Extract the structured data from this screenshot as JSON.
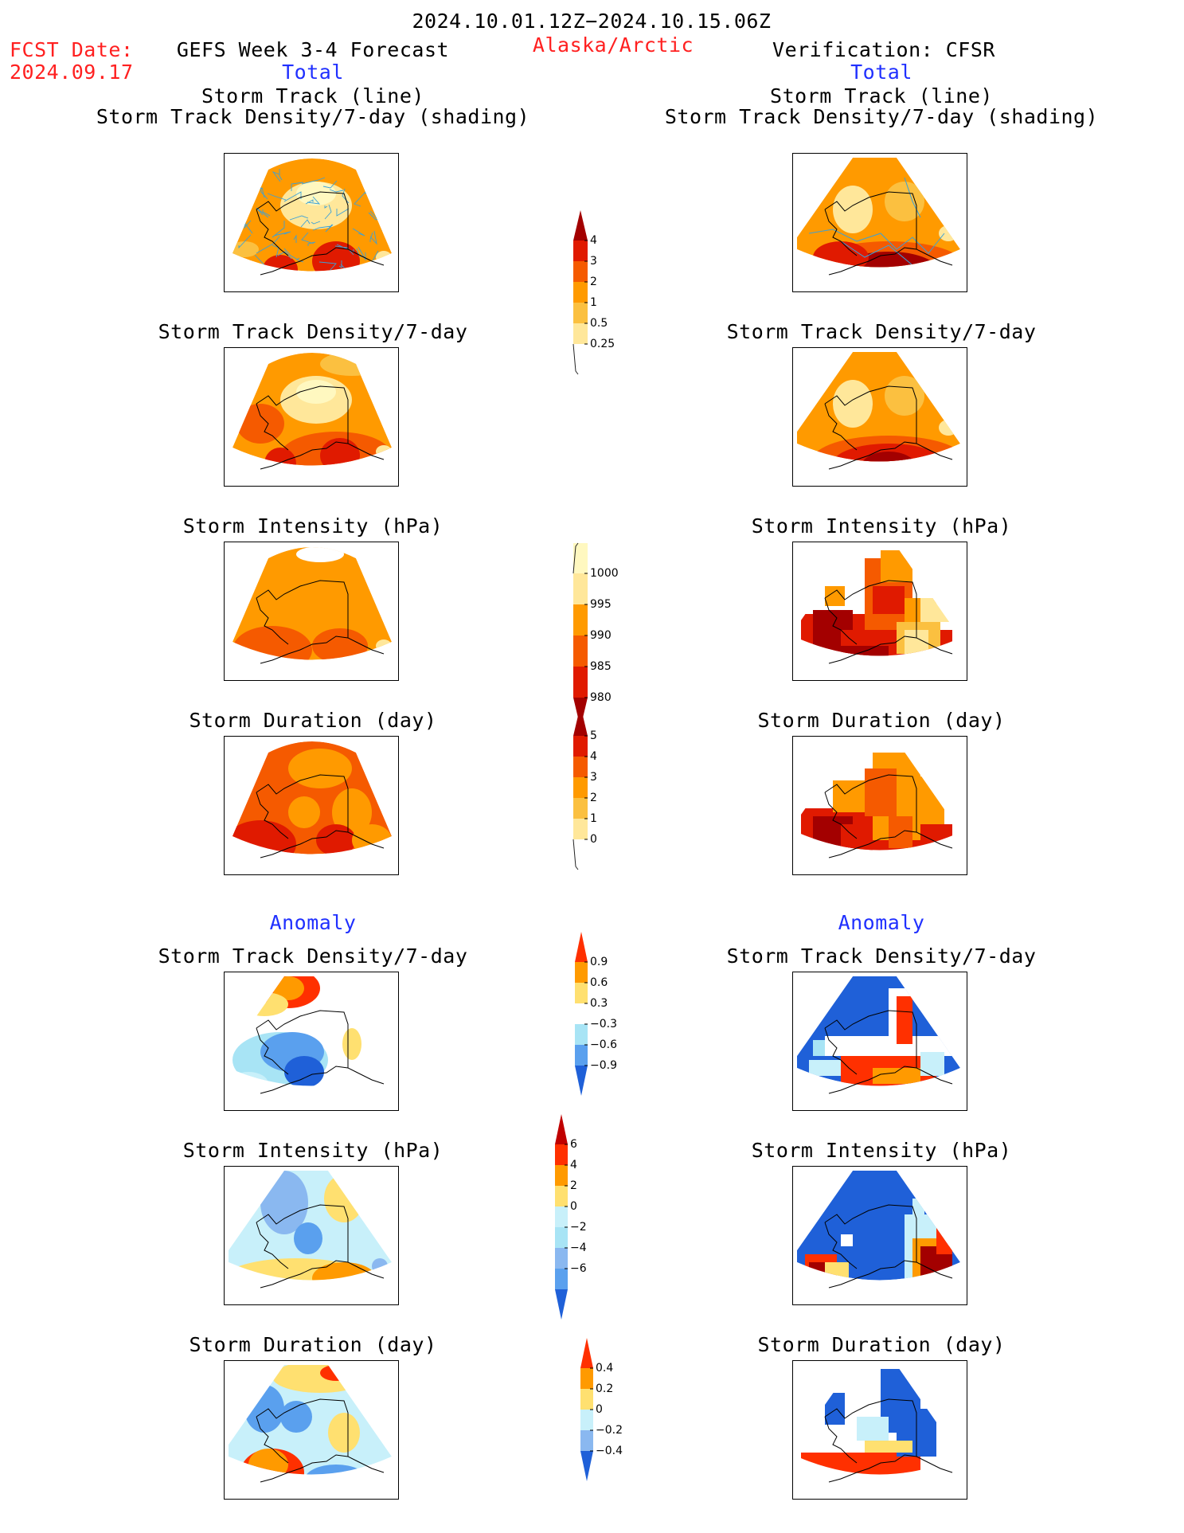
{
  "header": {
    "period": "2024.10.01.12Z−2024.10.15.06Z",
    "fcst_label": "FCST Date:",
    "fcst_date": "2024.09.17",
    "model": "GEFS Week 3-4 Forecast",
    "region": "Alaska/Arctic",
    "verification": "Verification: CFSR"
  },
  "columns": {
    "left_total": "Total",
    "right_total": "Total",
    "left_anomaly": "Anomaly",
    "right_anomaly": "Anomaly"
  },
  "panel_titles": {
    "track_line": "Storm Track (line)",
    "track_shading": "Storm Track Density/7-day (shading)",
    "density": "Storm Track Density/7-day",
    "intensity": "Storm Intensity (hPa)",
    "duration": "Storm Duration (day)"
  },
  "colorbars": {
    "density_total": {
      "labels": [
        "4",
        "3",
        "2",
        "1",
        "0.5",
        "0.25"
      ],
      "colors": [
        "#a30000",
        "#e01a00",
        "#f55a00",
        "#ff9a00",
        "#fbc040",
        "#ffe79a",
        "#fff8c0"
      ]
    },
    "intensity_total": {
      "labels": [
        "1000",
        "995",
        "990",
        "985",
        "980"
      ],
      "colors": [
        "#fff8c0",
        "#ffe79a",
        "#ff9a00",
        "#f55a00",
        "#e01a00",
        "#a30000"
      ]
    },
    "duration_total": {
      "labels": [
        "5",
        "4",
        "3",
        "2",
        "1",
        "0"
      ],
      "colors": [
        "#a30000",
        "#e01a00",
        "#f55a00",
        "#ff9a00",
        "#fbc040",
        "#ffe79a",
        "#fff8c0"
      ]
    },
    "density_anom": {
      "labels": [
        "0.9",
        "0.6",
        "0.3",
        "−0.3",
        "−0.6",
        "−0.9"
      ],
      "colors": [
        "#ff3000",
        "#ff9a00",
        "#ffe070",
        "#ffffff",
        "#a8e4f5",
        "#5aa0ee",
        "#1f60d8"
      ]
    },
    "intensity_anom": {
      "labels": [
        "6",
        "4",
        "2",
        "0",
        "−2",
        "−4",
        "−6"
      ],
      "colors": [
        "#c00000",
        "#ff3000",
        "#ff9a00",
        "#ffe070",
        "#c8f0fa",
        "#a8e4f5",
        "#8ab8f0",
        "#5aa0ee",
        "#1f60d8"
      ]
    },
    "duration_anom": {
      "labels": [
        "0.4",
        "0.2",
        "0",
        "−0.2",
        "−0.4"
      ],
      "colors": [
        "#ff3000",
        "#ff9a00",
        "#ffe070",
        "#c8f0fa",
        "#8ab8f0",
        "#1f60d8"
      ]
    }
  }
}
